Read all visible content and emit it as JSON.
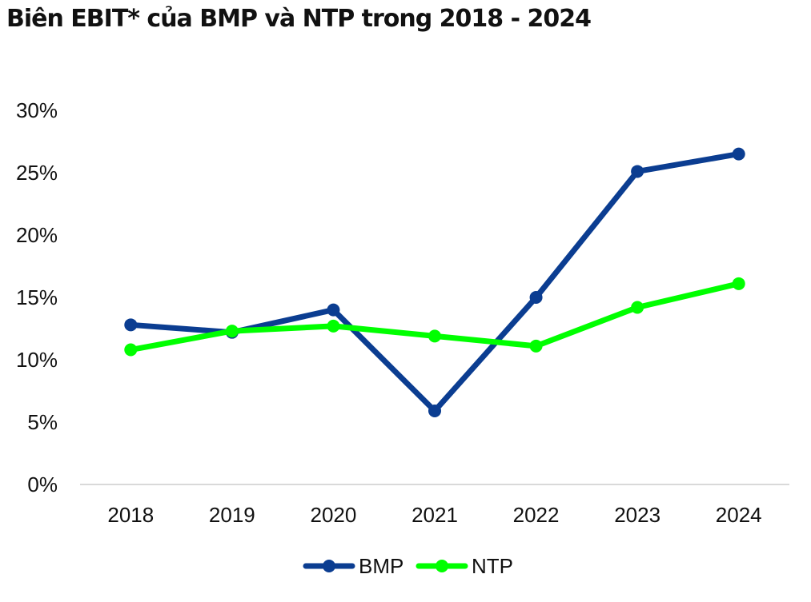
{
  "chart_data": {
    "type": "line",
    "title": "Biên EBIT* của BMP và NTP trong 2018 - 2024",
    "x": [
      "2018",
      "2019",
      "2020",
      "2021",
      "2022",
      "2023",
      "2024"
    ],
    "series": [
      {
        "name": "BMP",
        "color": "#0B3D91",
        "values": [
          12.8,
          12.2,
          14.0,
          5.9,
          15.0,
          25.1,
          26.5
        ]
      },
      {
        "name": "NTP",
        "color": "#00FF00",
        "values": [
          10.8,
          12.3,
          12.7,
          11.9,
          11.1,
          14.2,
          16.1
        ]
      }
    ],
    "y_ticks": [
      "0%",
      "5%",
      "10%",
      "15%",
      "20%",
      "25%",
      "30%"
    ],
    "ylim": [
      0,
      30
    ],
    "grid": false,
    "legend": "bottom-center"
  }
}
